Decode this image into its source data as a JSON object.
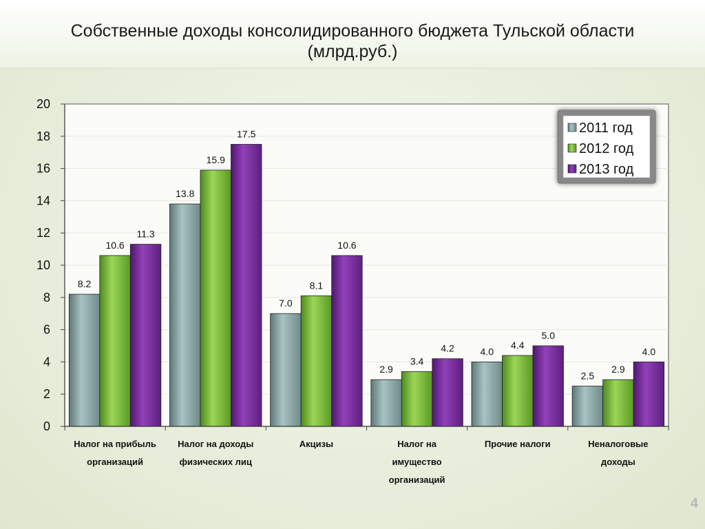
{
  "page": {
    "number": "4"
  },
  "colors": {
    "series_2011": "#8fabaa",
    "series_2012": "#7dbf3c",
    "series_2013": "#7a2f9a"
  },
  "chart_data": {
    "type": "bar",
    "title_lines": [
      "Собственные доходы консолидированного бюджета Тульской области",
      "(млрд.руб.)"
    ],
    "categories": [
      [
        "Налог на прибыль",
        "организаций"
      ],
      [
        "Налог на доходы",
        "физических лиц"
      ],
      [
        "Акцизы"
      ],
      [
        "Налог на",
        "имущество",
        "организаций"
      ],
      [
        "Прочие налоги"
      ],
      [
        "Неналоговые",
        "доходы"
      ]
    ],
    "series": [
      {
        "name": "2011 год",
        "values": [
          8.2,
          13.8,
          7.0,
          2.9,
          4.0,
          2.5
        ]
      },
      {
        "name": "2012 год",
        "values": [
          10.6,
          15.9,
          8.1,
          3.4,
          4.4,
          2.9
        ]
      },
      {
        "name": "2013 год",
        "values": [
          11.3,
          17.5,
          10.6,
          4.2,
          5.0,
          4.0
        ]
      }
    ],
    "ylim": [
      0,
      20
    ],
    "yticks": [
      "0",
      "2",
      "4",
      "6",
      "8",
      "10",
      "12",
      "14",
      "16",
      "18",
      "20"
    ],
    "grid": true,
    "legend_position": "top-right"
  }
}
